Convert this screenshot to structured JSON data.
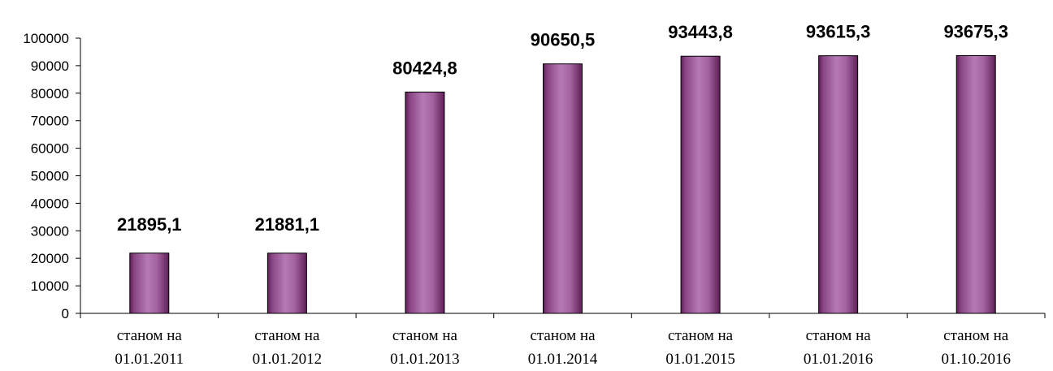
{
  "chart_data": {
    "type": "bar",
    "categories": [
      [
        "станом на",
        "01.01.2011"
      ],
      [
        "станом на",
        "01.01.2012"
      ],
      [
        "станом на",
        "01.01.2013"
      ],
      [
        "станом на",
        "01.01.2014"
      ],
      [
        "станом на",
        "01.01.2015"
      ],
      [
        "станом на",
        "01.01.2016"
      ],
      [
        "станом на",
        "01.10.2016"
      ]
    ],
    "values": [
      21895.1,
      21881.1,
      80424.8,
      90650.5,
      93443.8,
      93615.3,
      93675.3
    ],
    "value_labels": [
      "21895,1",
      "21881,1",
      "80424,8",
      "90650,5",
      "93443,8",
      "93615,3",
      "93675,3"
    ],
    "title": "",
    "xlabel": "",
    "ylabel": "",
    "ylim": [
      0,
      100000
    ],
    "yticks": [
      "0",
      "10000",
      "20000",
      "30000",
      "40000",
      "50000",
      "60000",
      "70000",
      "80000",
      "90000",
      "100000"
    ],
    "grid": false,
    "legend": "none",
    "colors": {
      "bar_light": "#b57ab5",
      "bar_mid": "#a3629f",
      "bar_dark": "#5e1f57",
      "axis": "#000000"
    }
  }
}
